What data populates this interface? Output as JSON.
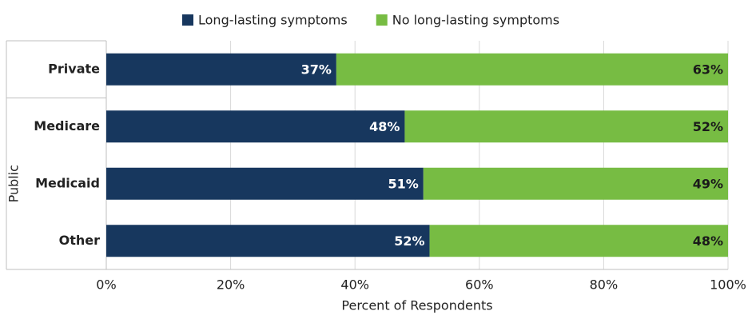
{
  "chart_data": {
    "type": "stacked-barh",
    "categories": [
      "Private",
      "Medicare",
      "Medicaid",
      "Other"
    ],
    "category_groups": [
      null,
      "Public",
      "Public",
      "Public"
    ],
    "series": [
      {
        "name": "Long-lasting symptoms",
        "color": "#17375e",
        "label_color": "#ffffff",
        "values": [
          37,
          48,
          51,
          52
        ],
        "value_labels": [
          "37%",
          "48%",
          "51%",
          "52%"
        ]
      },
      {
        "name": "No long-lasting symptoms",
        "color": "#77bc43",
        "label_color": "#1a1a1a",
        "values": [
          63,
          52,
          49,
          48
        ],
        "value_labels": [
          "63%",
          "52%",
          "49%",
          "48%"
        ]
      }
    ],
    "xlim": [
      0,
      100
    ],
    "xticks": [
      {
        "value": 0,
        "label": "0%"
      },
      {
        "value": 20,
        "label": "20%"
      },
      {
        "value": 40,
        "label": "40%"
      },
      {
        "value": 60,
        "label": "60%"
      },
      {
        "value": 80,
        "label": "80%"
      },
      {
        "value": 100,
        "label": "100%"
      }
    ],
    "xlabel": "Percent of Respondents",
    "grid": true,
    "legend": "top"
  }
}
